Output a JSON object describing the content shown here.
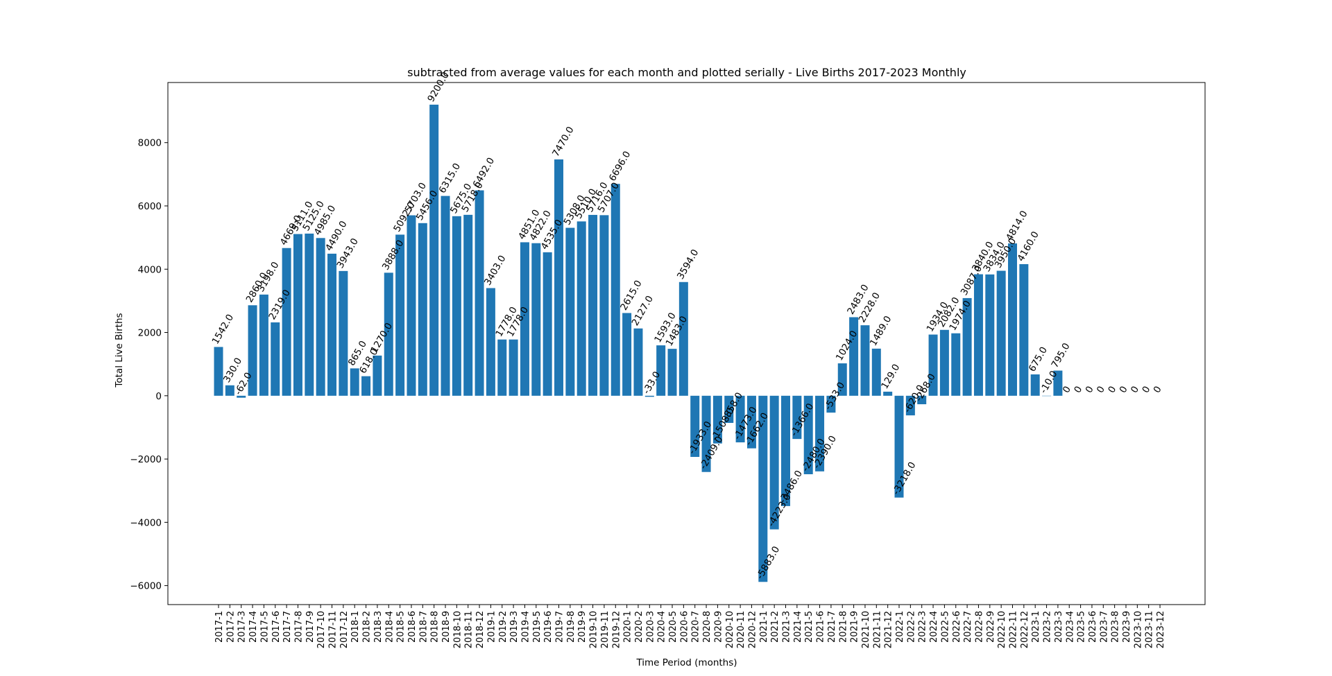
{
  "chart_data": {
    "type": "bar",
    "title": "subtracted from average values for each month and plotted serially -  Live Births 2017-2023 Monthly",
    "xlabel": "Time Period (months)",
    "ylabel": "Total  Live Births",
    "ylim": [
      -6600,
      9900
    ],
    "yticks": [
      -6000,
      -4000,
      -2000,
      0,
      2000,
      4000,
      6000,
      8000
    ],
    "grid": false,
    "color": "#1f77b4",
    "categories": [
      "2017-1",
      "2017-2",
      "2017-3",
      "2017-4",
      "2017-5",
      "2017-6",
      "2017-7",
      "2017-8",
      "2017-9",
      "2017-10",
      "2017-11",
      "2017-12",
      "2018-1",
      "2018-2",
      "2018-3",
      "2018-4",
      "2018-5",
      "2018-6",
      "2018-7",
      "2018-8",
      "2018-9",
      "2018-10",
      "2018-11",
      "2018-12",
      "2019-1",
      "2019-2",
      "2019-3",
      "2019-4",
      "2019-5",
      "2019-6",
      "2019-7",
      "2019-8",
      "2019-9",
      "2019-10",
      "2019-11",
      "2019-12",
      "2020-1",
      "2020-2",
      "2020-3",
      "2020-4",
      "2020-5",
      "2020-6",
      "2020-7",
      "2020-8",
      "2020-9",
      "2020-10",
      "2020-11",
      "2020-12",
      "2021-1",
      "2021-2",
      "2021-3",
      "2021-4",
      "2021-5",
      "2021-6",
      "2021-7",
      "2021-8",
      "2021-9",
      "2021-10",
      "2021-11",
      "2021-12",
      "2022-1",
      "2022-2",
      "2022-3",
      "2022-4",
      "2022-5",
      "2022-6",
      "2022-7",
      "2022-8",
      "2022-9",
      "2022-10",
      "2022-11",
      "2022-12",
      "2023-1",
      "2023-2",
      "2023-3",
      "2023-4",
      "2023-5",
      "2023-6",
      "2023-7",
      "2023-8",
      "2023-9",
      "2023-10",
      "2023-11",
      "2023-12"
    ],
    "values": [
      1542.0,
      330.0,
      -62.0,
      2860.0,
      3198.0,
      2319.0,
      4669.0,
      5111.0,
      5125.0,
      4985.0,
      4490.0,
      3943.0,
      865.0,
      618.0,
      1270.0,
      3888.0,
      5092.0,
      5703.0,
      5456.0,
      9200.0,
      6315.0,
      5675.0,
      5718.0,
      6492.0,
      3403.0,
      1778.0,
      1778.0,
      4851.0,
      4822.0,
      4535.0,
      7470.0,
      5308.0,
      5510.0,
      5716.0,
      5707.0,
      6696.0,
      2615.0,
      2127.0,
      -33.0,
      1593.0,
      1483.0,
      3594.0,
      -1933.0,
      -2409.0,
      -1508.0,
      -858.0,
      -1473.0,
      -1662.0,
      -5883.0,
      -4223.0,
      -3486.0,
      -1366.0,
      -2480.0,
      -2390.0,
      -533.0,
      1024.0,
      2483.0,
      2228.0,
      1489.0,
      129.0,
      -3218.0,
      -620.0,
      -268.0,
      1934.0,
      2082.0,
      1974.0,
      3087.0,
      3840.0,
      3834.0,
      3950.0,
      4814.0,
      4160.0,
      675.0,
      -10.0,
      795.0,
      0,
      0,
      0,
      0,
      0,
      0,
      0,
      0,
      0
    ],
    "data_labels": [
      "1542.0",
      "330.0",
      "-62.0",
      "2860.0",
      "3198.0",
      "2319.0",
      "4669.0",
      "5111.0",
      "5125.0",
      "4985.0",
      "4490.0",
      "3943.0",
      "865.0",
      "618.0",
      "1270.0",
      "3888.0",
      "5092.0",
      "5703.0",
      "5456.0",
      "9200.0",
      "6315.0",
      "5675.0",
      "5718.0",
      "6492.0",
      "3403.0",
      "1778.0",
      "1778.0",
      "4851.0",
      "4822.0",
      "4535.0",
      "7470.0",
      "5308.0",
      "5510.0",
      "5716.0",
      "5707.0",
      "6696.0",
      "2615.0",
      "2127.0",
      "-33.0",
      "1593.0",
      "1483.0",
      "3594.0",
      "-1933.0",
      "-2409.0",
      "-1508.0",
      "-858.0",
      "-1473.0",
      "-1662.0",
      "-5883.0",
      "-4223.0",
      "-3486.0",
      "-1366.0",
      "-2480.0",
      "-2390.0",
      "-533.0",
      "1024.0",
      "2483.0",
      "2228.0",
      "1489.0",
      "129.0",
      "-3218.0",
      "-620.0",
      "-268.0",
      "1934.0",
      "2082.0",
      "1974.0",
      "3087.0",
      "3840.0",
      "3834.0",
      "3950.0",
      "4814.0",
      "4160.0",
      "675.0",
      "-10.0",
      "795.0",
      "0",
      "0",
      "0",
      "0",
      "0",
      "0",
      "0",
      "0",
      "0"
    ]
  }
}
